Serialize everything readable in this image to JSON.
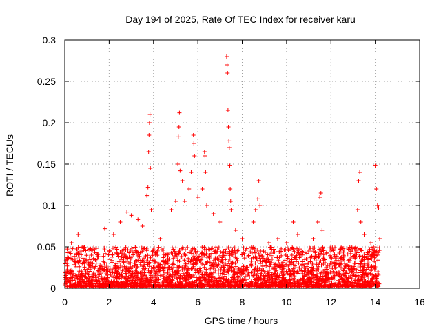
{
  "chart_data": {
    "type": "scatter",
    "title": "Day 194 of 2025, Rate Of TEC Index for receiver karu",
    "xlabel": "GPS time / hours",
    "ylabel": "ROTI / TECUs",
    "xlim": [
      0,
      16
    ],
    "ylim": [
      0,
      0.3
    ],
    "xticks": [
      0,
      2,
      4,
      6,
      8,
      10,
      12,
      14,
      16
    ],
    "yticks": [
      0,
      0.05,
      0.1,
      0.15,
      0.2,
      0.25,
      0.3
    ],
    "xtick_labels": [
      "0",
      "2",
      "4",
      "6",
      "8",
      "10",
      "12",
      "14",
      "16"
    ],
    "ytick_labels": [
      "0",
      "0.05",
      "0.1",
      "0.15",
      "0.2",
      "0.25",
      "0.3"
    ],
    "grid": true,
    "marker": "+",
    "color": "#ff0000",
    "series": [
      {
        "name": "ROTI",
        "points": [
          [
            0.1,
            0.03
          ],
          [
            0.3,
            0.055
          ],
          [
            0.6,
            0.065
          ],
          [
            0.8,
            0.05
          ],
          [
            1.2,
            0.04
          ],
          [
            1.8,
            0.072
          ],
          [
            2.2,
            0.065
          ],
          [
            2.5,
            0.08
          ],
          [
            2.8,
            0.092
          ],
          [
            3.0,
            0.088
          ],
          [
            3.3,
            0.083
          ],
          [
            3.5,
            0.075
          ],
          [
            3.7,
            0.112
          ],
          [
            3.75,
            0.122
          ],
          [
            3.78,
            0.165
          ],
          [
            3.8,
            0.185
          ],
          [
            3.82,
            0.2
          ],
          [
            3.84,
            0.21
          ],
          [
            3.86,
            0.145
          ],
          [
            3.9,
            0.095
          ],
          [
            4.3,
            0.06
          ],
          [
            4.8,
            0.095
          ],
          [
            5.0,
            0.105
          ],
          [
            5.1,
            0.15
          ],
          [
            5.12,
            0.183
          ],
          [
            5.15,
            0.195
          ],
          [
            5.17,
            0.212
          ],
          [
            5.2,
            0.142
          ],
          [
            5.3,
            0.13
          ],
          [
            5.4,
            0.105
          ],
          [
            5.6,
            0.12
          ],
          [
            5.7,
            0.14
          ],
          [
            5.8,
            0.185
          ],
          [
            5.82,
            0.175
          ],
          [
            5.85,
            0.16
          ],
          [
            6.0,
            0.11
          ],
          [
            6.2,
            0.12
          ],
          [
            6.3,
            0.165
          ],
          [
            6.32,
            0.16
          ],
          [
            6.35,
            0.14
          ],
          [
            6.4,
            0.1
          ],
          [
            6.7,
            0.09
          ],
          [
            7.0,
            0.08
          ],
          [
            7.3,
            0.28
          ],
          [
            7.32,
            0.27
          ],
          [
            7.34,
            0.26
          ],
          [
            7.36,
            0.215
          ],
          [
            7.38,
            0.195
          ],
          [
            7.4,
            0.178
          ],
          [
            7.42,
            0.17
          ],
          [
            7.44,
            0.148
          ],
          [
            7.46,
            0.12
          ],
          [
            7.48,
            0.105
          ],
          [
            7.5,
            0.095
          ],
          [
            7.7,
            0.07
          ],
          [
            8.0,
            0.06
          ],
          [
            8.5,
            0.08
          ],
          [
            8.6,
            0.095
          ],
          [
            8.7,
            0.108
          ],
          [
            8.75,
            0.13
          ],
          [
            8.8,
            0.1
          ],
          [
            9.2,
            0.055
          ],
          [
            9.6,
            0.06
          ],
          [
            10.0,
            0.055
          ],
          [
            10.3,
            0.08
          ],
          [
            10.5,
            0.065
          ],
          [
            11.0,
            0.045
          ],
          [
            11.2,
            0.06
          ],
          [
            11.4,
            0.08
          ],
          [
            11.5,
            0.11
          ],
          [
            11.55,
            0.115
          ],
          [
            11.6,
            0.07
          ],
          [
            12.0,
            0.045
          ],
          [
            12.5,
            0.05
          ],
          [
            12.9,
            0.045
          ],
          [
            13.2,
            0.095
          ],
          [
            13.25,
            0.13
          ],
          [
            13.3,
            0.14
          ],
          [
            13.35,
            0.08
          ],
          [
            13.5,
            0.065
          ],
          [
            13.8,
            0.055
          ],
          [
            14.0,
            0.148
          ],
          [
            14.05,
            0.12
          ],
          [
            14.1,
            0.1
          ],
          [
            14.15,
            0.097
          ],
          [
            14.2,
            0.06
          ]
        ],
        "bulk_band": {
          "x_range": [
            0.0,
            14.2
          ],
          "y_range": [
            0.002,
            0.05
          ],
          "note": "Dense cluster of observations near the baseline across the full time range"
        }
      }
    ]
  }
}
